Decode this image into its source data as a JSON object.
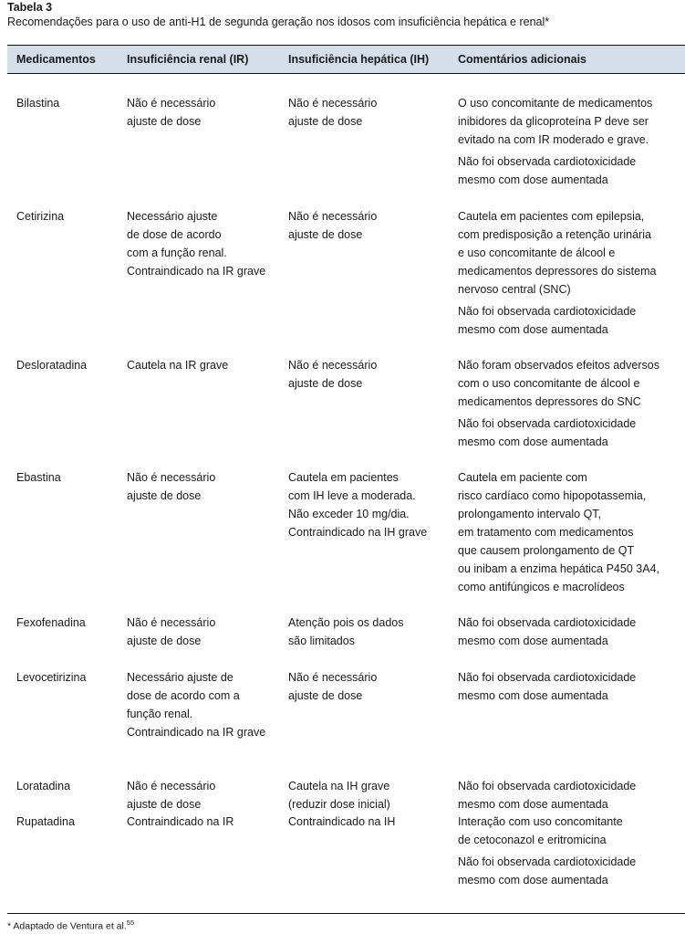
{
  "title": "Tabela 3",
  "subtitle": "Recomendações para o uso de anti-H1 de segunda geração nos idosos com insuficiência hepática e renal*",
  "colors": {
    "header_bg": "#d4dfea",
    "rule": "#111111"
  },
  "headers": [
    "Medicamentos",
    "Insuficiência renal (IR)",
    "Insuficiência hepática (IH)",
    "Comentários adicionais"
  ],
  "rows": [
    {
      "drug": "Bilastina",
      "renal": [
        [
          "Não é necessário",
          "ajuste de dose"
        ]
      ],
      "hepatic": [
        [
          "Não é necessário",
          "ajuste de dose"
        ]
      ],
      "comments": [
        [
          "O uso concomitante de medicamentos",
          "inibidores da glicoproteína P deve ser",
          "evitado na com IR moderado e grave."
        ],
        [
          "Não foi observada cardiotoxicidade",
          "mesmo com dose aumentada"
        ]
      ]
    },
    {
      "drug": "Cetirizina",
      "renal": [
        [
          "Necessário ajuste",
          "de dose de acordo",
          "com a função renal.",
          "Contraindicado na IR grave"
        ]
      ],
      "hepatic": [
        [
          "Não é necessário",
          "ajuste de dose"
        ]
      ],
      "comments": [
        [
          "Cautela em pacientes com epilepsia,",
          "com predisposição a retenção urinária",
          "e uso concomitante de álcool e",
          "medicamentos depressores do sistema",
          "nervoso central (SNC)"
        ],
        [
          "Não foi observada cardiotoxicidade",
          "mesmo com dose aumentada"
        ]
      ]
    },
    {
      "drug": "Desloratadina",
      "renal": [
        [
          "Cautela na IR grave"
        ]
      ],
      "hepatic": [
        [
          "Não é necessário",
          "ajuste de dose"
        ]
      ],
      "comments": [
        [
          "Não foram observados efeitos adversos",
          "com o uso concomitante de álcool e",
          "medicamentos depressores do SNC"
        ],
        [
          "Não foi observada cardiotoxicidade",
          "mesmo com dose aumentada"
        ]
      ]
    },
    {
      "drug": "Ebastina",
      "renal": [
        [
          "Não é necessário",
          "ajuste de dose"
        ]
      ],
      "hepatic": [
        [
          "Cautela em pacientes",
          "com IH leve a moderada.",
          "Não exceder 10 mg/dia.",
          "Contraindicado na IH grave"
        ]
      ],
      "comments": [
        [
          "Cautela em paciente com",
          "risco cardíaco como hipopotassemia,",
          "prolongamento intervalo QT,",
          "em tratamento com medicamentos",
          "que causem prolongamento de QT",
          "ou inibam a enzima hepática P450 3A4,",
          "como antifúngicos e macrolídeos"
        ]
      ]
    },
    {
      "drug": "Fexofenadina",
      "renal": [
        [
          "Não é necessário",
          "ajuste de dose"
        ]
      ],
      "hepatic": [
        [
          "Atenção pois os dados",
          "são limitados"
        ]
      ],
      "comments": [
        [
          "Não foi observada cardiotoxicidade",
          "mesmo com dose aumentada"
        ]
      ]
    },
    {
      "drug": "Levocetirizina",
      "renal": [
        [
          "Necessário ajuste de",
          "dose de acordo com a",
          "função renal.",
          "Contraindicado na IR grave"
        ]
      ],
      "hepatic": [
        [
          "Não é necessário",
          "ajuste de dose"
        ]
      ],
      "comments": [
        [
          "Não foi observada cardiotoxicidade",
          "mesmo com dose aumentada"
        ]
      ]
    },
    {
      "drug": "Loratadina",
      "renal": [
        [
          "Não é necessário",
          "ajuste de dose"
        ]
      ],
      "hepatic": [
        [
          "Cautela na IH grave",
          "(reduzir dose inicial)"
        ]
      ],
      "comments": [
        [
          "Não foi observada cardiotoxicidade",
          "mesmo com dose aumentada"
        ]
      ]
    },
    {
      "drug": "Rupatadina",
      "renal": [
        [
          "Contraindicado na IR"
        ]
      ],
      "hepatic": [
        [
          "Contraindicado na IH"
        ]
      ],
      "comments": [
        [
          "Interação com uso concomitante",
          "de cetoconazol e eritromicina"
        ],
        [
          "Não foi observada cardiotoxicidade",
          "mesmo com dose aumentada"
        ]
      ]
    }
  ],
  "footnote": {
    "text": "* Adaptado de Ventura et al.",
    "ref": "55"
  }
}
